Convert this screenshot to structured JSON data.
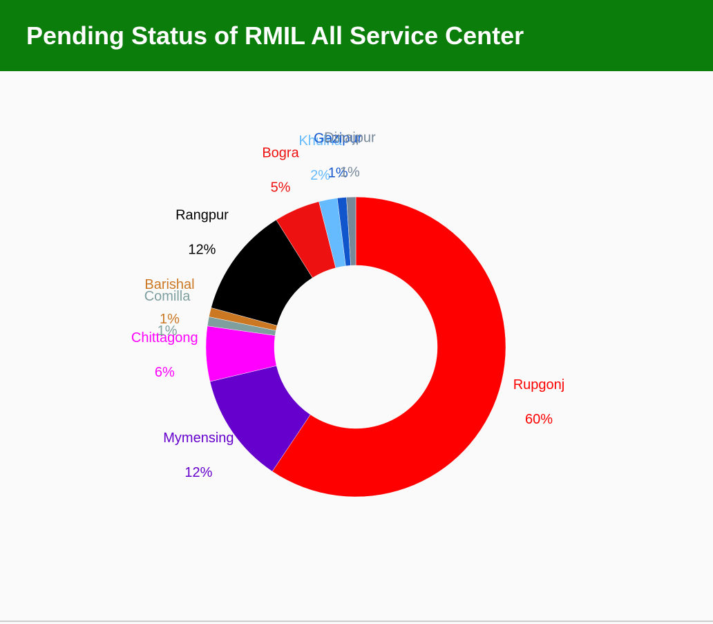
{
  "chart_data": {
    "type": "donut",
    "title": "Pending Status of RMIL All Service Center",
    "categories": [
      "Rupgonj",
      "Mymensing",
      "Chittagong",
      "Comilla",
      "Barishal",
      "Rangpur",
      "Bogra",
      "Khulna",
      "Gazipur",
      "Dinajpur"
    ],
    "values": [
      60,
      12,
      6,
      1,
      1,
      12,
      5,
      2,
      1,
      1
    ],
    "value_labels": [
      "60%",
      "12%",
      "6%",
      "1%",
      "1%",
      "12%",
      "5%",
      "2%",
      "1%",
      "1%"
    ],
    "colors": [
      "#ff0000",
      "#6600cc",
      "#ff00ff",
      "#7f9f9f",
      "#cc7722",
      "#000000",
      "#ee1111",
      "#66bbff",
      "#1155cc",
      "#778899"
    ]
  }
}
